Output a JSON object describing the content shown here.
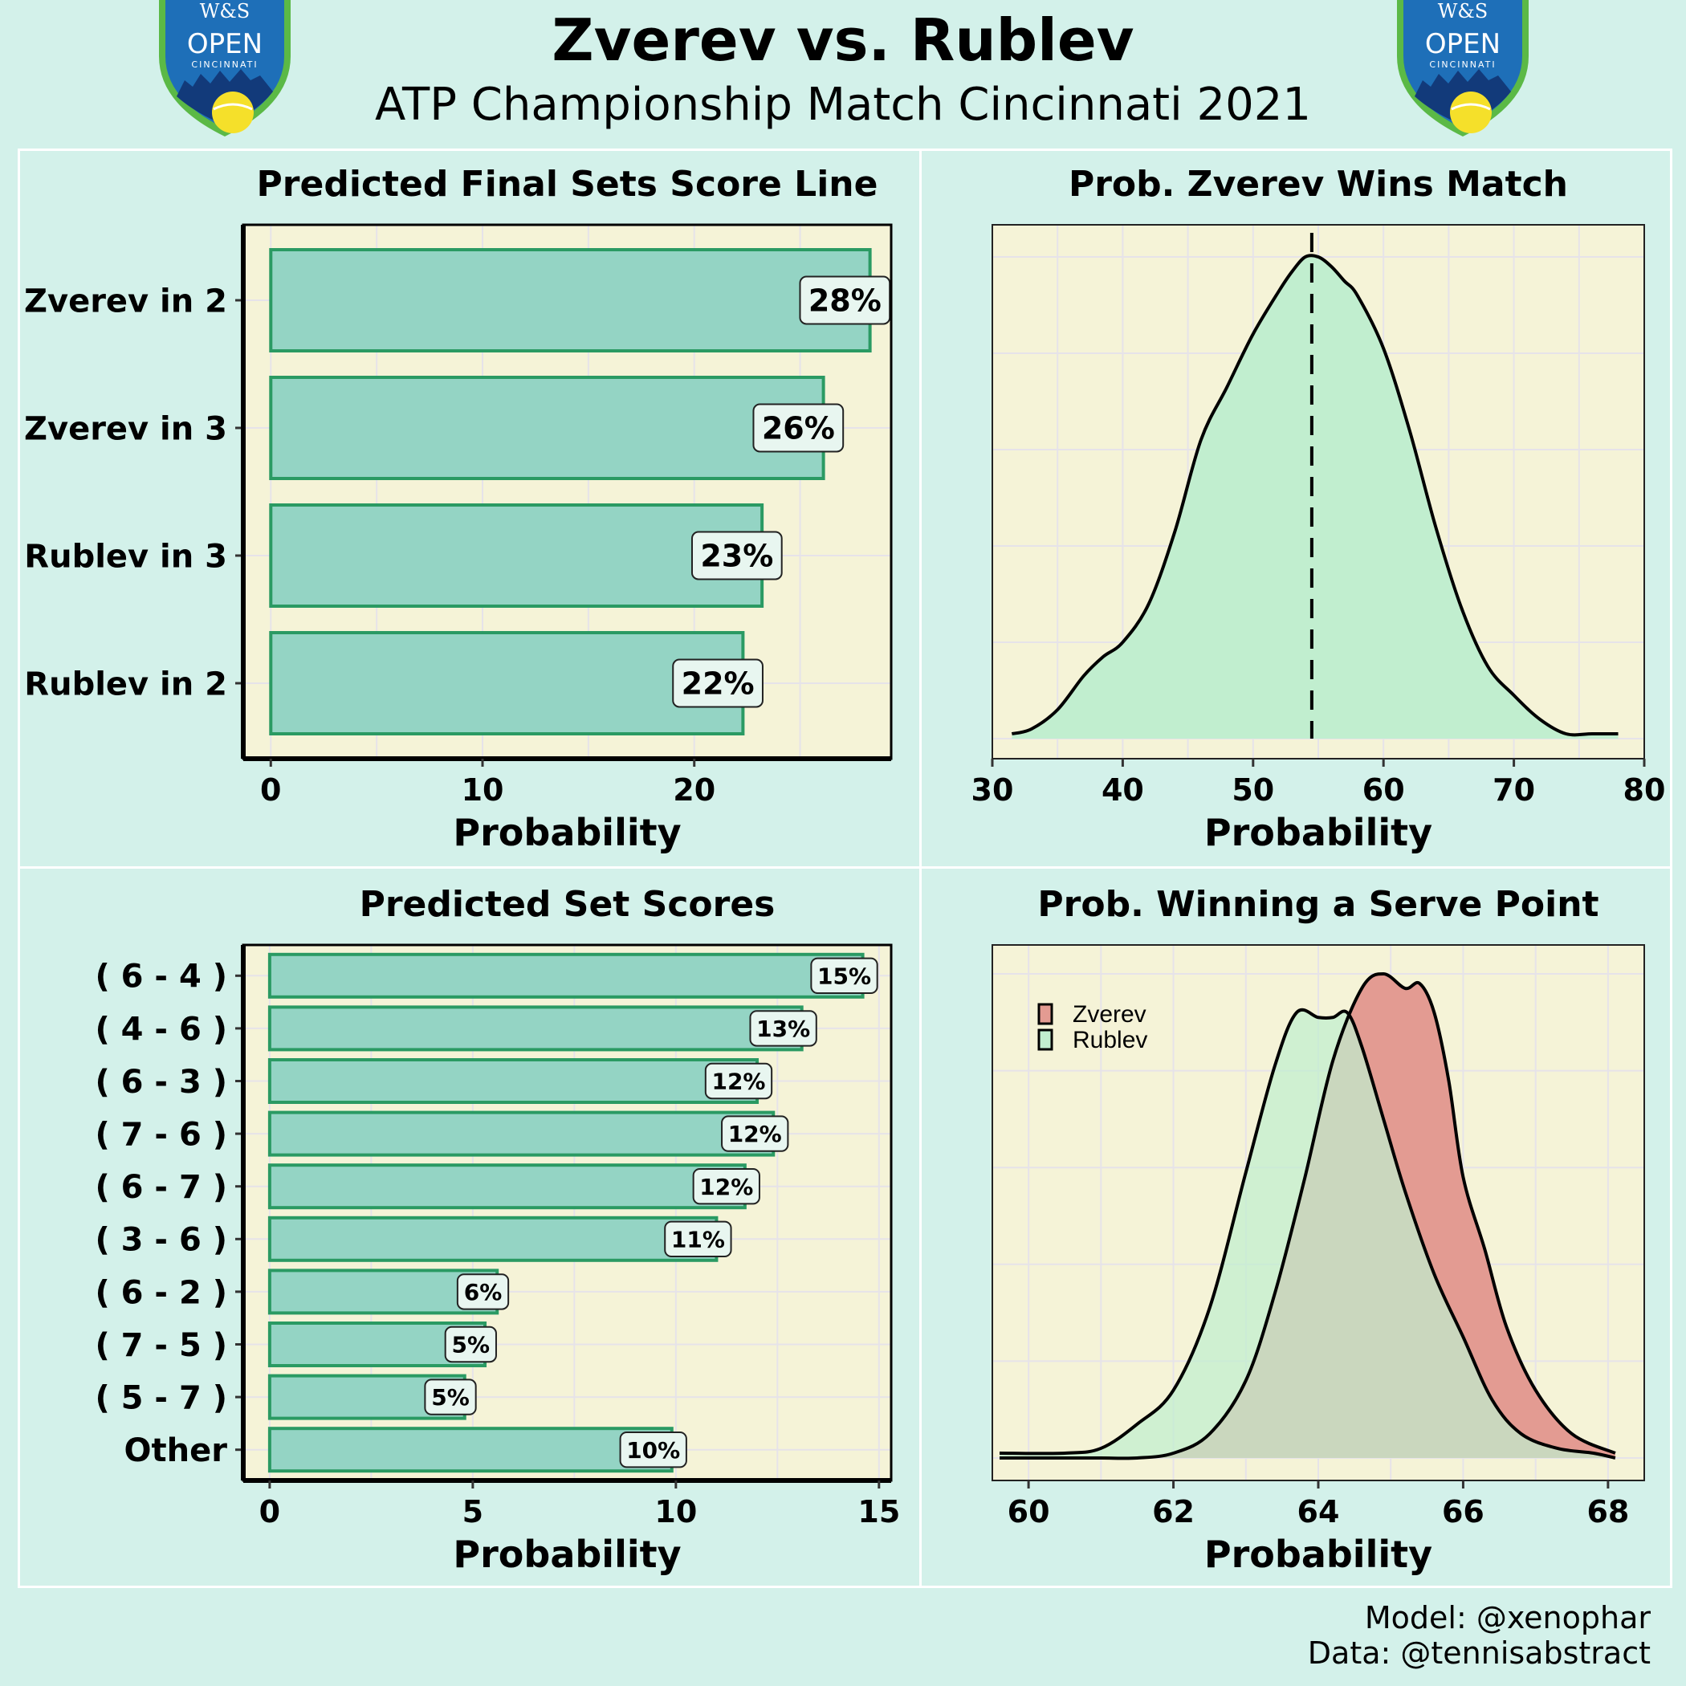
{
  "header": {
    "title": "Zverev vs. Rublev",
    "subtitle": "ATP Championship Match Cincinnati 2021",
    "logo_text_top": "W&S",
    "logo_text_main": "OPEN",
    "logo_text_city": "CINCINNATI"
  },
  "footer": {
    "model_credit": "Model: @xenophar",
    "data_credit": "Data: @tennisabstract"
  },
  "colors": {
    "background": "#d3f1ea",
    "panel_bg": "#f5f3d7",
    "bar_fill": "#94d4c4",
    "bar_border": "#2a9a63",
    "zverev_fill": "#e39b92",
    "rublev_fill": "#c1eecf",
    "grid": "#e6e3e9"
  },
  "chart_data": [
    {
      "id": "final-sets",
      "type": "bar",
      "orientation": "horizontal",
      "title": "Predicted Final Sets Score Line",
      "xlabel": "Probability",
      "ylabel": "",
      "xlim": [
        -1.3,
        29.3
      ],
      "xticks": [
        0,
        10,
        20
      ],
      "categories": [
        "Zverev in 2",
        "Zverev in 3",
        "Rublev in 3",
        "Rublev in 2"
      ],
      "values": [
        28.3,
        26.1,
        23.2,
        22.3
      ],
      "labels": [
        "28%",
        "26%",
        "23%",
        "22%"
      ]
    },
    {
      "id": "set-scores",
      "type": "bar",
      "orientation": "horizontal",
      "title": "Predicted Set Scores",
      "xlabel": "Probability",
      "ylabel": "",
      "xlim": [
        -0.65,
        15.3
      ],
      "xticks": [
        0,
        5,
        10,
        15
      ],
      "categories": [
        "( 6 - 4 )",
        "( 4 - 6 )",
        "( 6 - 3 )",
        "( 7 - 6 )",
        "( 6 - 7 )",
        "( 3 - 6 )",
        "( 6 - 2 )",
        "( 7 - 5 )",
        "( 5 - 7 )",
        "Other"
      ],
      "values": [
        14.6,
        13.1,
        12.0,
        12.4,
        11.7,
        11.0,
        5.6,
        5.3,
        4.8,
        9.9
      ],
      "labels": [
        "15%",
        "13%",
        "12%",
        "12%",
        "12%",
        "11%",
        "6%",
        "5%",
        "5%",
        "10%"
      ]
    },
    {
      "id": "win-match",
      "type": "area",
      "title": "Prob. Zverev Wins Match",
      "xlabel": "Probability",
      "ylabel": "",
      "xlim": [
        30,
        80
      ],
      "xticks": [
        30,
        40,
        50,
        60,
        70,
        80
      ],
      "ylim": [
        0,
        1
      ],
      "mean_line": 54.5,
      "series": [
        {
          "x": [
            31.5,
            33,
            35,
            37,
            38.5,
            40,
            42,
            44,
            46,
            48,
            50,
            52,
            53,
            54,
            55,
            56,
            57,
            58,
            60,
            62,
            64,
            66,
            68,
            70,
            72,
            74,
            76,
            78
          ],
          "y": [
            0.01,
            0.02,
            0.06,
            0.13,
            0.17,
            0.2,
            0.28,
            0.43,
            0.62,
            0.73,
            0.84,
            0.93,
            0.97,
            1.0,
            1.0,
            0.98,
            0.95,
            0.92,
            0.81,
            0.64,
            0.44,
            0.27,
            0.15,
            0.09,
            0.04,
            0.01,
            0.01,
            0.01
          ]
        }
      ]
    },
    {
      "id": "serve-point",
      "type": "area",
      "title": "Prob. Winning a Serve Point",
      "xlabel": "Probability",
      "ylabel": "",
      "xlim": [
        59.5,
        68.5
      ],
      "xticks": [
        60,
        62,
        64,
        66,
        68
      ],
      "ylim": [
        0,
        1
      ],
      "legend_position": "top-left",
      "series": [
        {
          "name": "Zverev",
          "x": [
            59.6,
            60.5,
            61,
            61.5,
            62,
            62.5,
            63,
            63.4,
            63.8,
            64.2,
            64.6,
            64.9,
            65.2,
            65.4,
            65.6,
            65.8,
            66.0,
            66.3,
            66.6,
            67,
            67.5,
            68.1
          ],
          "y": [
            0.0,
            0.0,
            0.0,
            0.0,
            0.01,
            0.05,
            0.16,
            0.34,
            0.57,
            0.82,
            0.97,
            1.0,
            0.97,
            0.98,
            0.92,
            0.78,
            0.58,
            0.43,
            0.27,
            0.14,
            0.05,
            0.01
          ]
        },
        {
          "name": "Rublev",
          "x": [
            59.6,
            60.5,
            61,
            61.5,
            62,
            62.5,
            63,
            63.4,
            63.7,
            64.0,
            64.2,
            64.4,
            64.6,
            64.9,
            65.2,
            65.6,
            66.0,
            66.4,
            66.8,
            67.3,
            67.8,
            68.1
          ],
          "y": [
            0.01,
            0.01,
            0.02,
            0.07,
            0.14,
            0.31,
            0.59,
            0.81,
            0.92,
            0.91,
            0.91,
            0.92,
            0.85,
            0.7,
            0.55,
            0.38,
            0.25,
            0.12,
            0.05,
            0.02,
            0.01,
            0.0
          ]
        }
      ]
    }
  ]
}
